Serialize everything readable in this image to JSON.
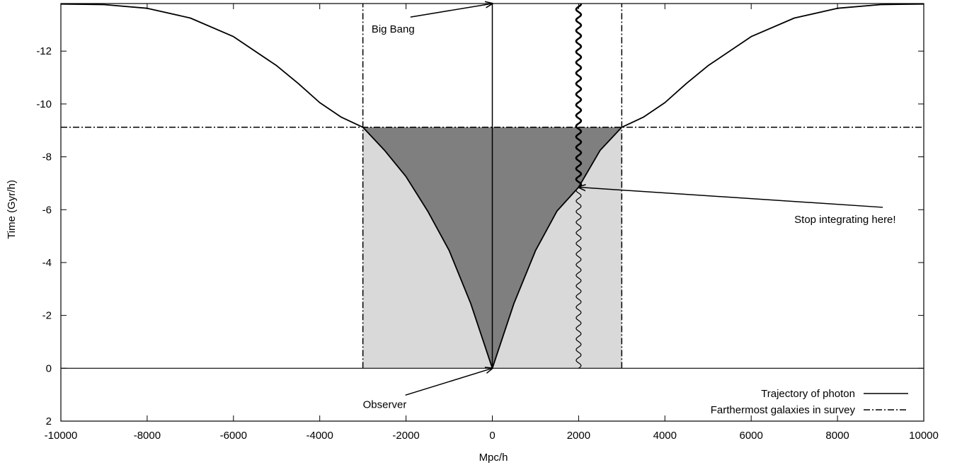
{
  "chart_data": {
    "type": "line",
    "title": "",
    "xlabel": "Mpc/h",
    "ylabel": "Time (Gyr/h)",
    "xlim": [
      -10000,
      10000
    ],
    "ylim": [
      2,
      -13.8
    ],
    "y_axis_inverted": true,
    "grid": false,
    "legend_position": "bottom-right",
    "x_ticks": [
      {
        "value": -10000,
        "label": "-10000"
      },
      {
        "value": -8000,
        "label": "-8000"
      },
      {
        "value": -6000,
        "label": "-6000"
      },
      {
        "value": -4000,
        "label": "-4000"
      },
      {
        "value": -2000,
        "label": "-2000"
      },
      {
        "value": 0,
        "label": "0"
      },
      {
        "value": 2000,
        "label": "2000"
      },
      {
        "value": 4000,
        "label": "4000"
      },
      {
        "value": 6000,
        "label": "6000"
      },
      {
        "value": 8000,
        "label": "8000"
      },
      {
        "value": 10000,
        "label": "10000"
      }
    ],
    "y_ticks": [
      {
        "value": -12,
        "label": "-12"
      },
      {
        "value": -10,
        "label": "-10"
      },
      {
        "value": -8,
        "label": "-8"
      },
      {
        "value": -6,
        "label": "-6"
      },
      {
        "value": -4,
        "label": "-4"
      },
      {
        "value": -2,
        "label": "-2"
      },
      {
        "value": 0,
        "label": "0"
      },
      {
        "value": 2,
        "label": "2"
      }
    ],
    "series": [
      {
        "name": "Trajectory of photon",
        "style": "solid",
        "x": [
          -10000,
          -9000,
          -8000,
          -7000,
          -6000,
          -5000,
          -4500,
          -4000,
          -3500,
          -3000,
          -2500,
          -2000,
          -1500,
          -1000,
          -500,
          0,
          500,
          1000,
          1500,
          2000,
          2500,
          3000,
          3500,
          4000,
          4500,
          5000,
          6000,
          7000,
          8000,
          9000,
          10000
        ],
        "y": [
          -13.78,
          -13.76,
          -13.62,
          -13.25,
          -12.55,
          -11.45,
          -10.78,
          -10.05,
          -9.5,
          -9.12,
          -8.25,
          -7.25,
          -5.95,
          -4.45,
          -2.45,
          0,
          -2.45,
          -4.45,
          -5.95,
          -6.85,
          -8.25,
          -9.12,
          -9.5,
          -10.05,
          -10.78,
          -11.45,
          -12.55,
          -13.25,
          -13.62,
          -13.76,
          -13.78
        ]
      },
      {
        "name": "Farthermost galaxies in survey",
        "style": "dash-dot",
        "segments": [
          {
            "x": [
              -10000,
              10000
            ],
            "y": [
              -9.12,
              -9.12
            ]
          },
          {
            "x": [
              -3000,
              -3000
            ],
            "y": [
              0,
              -13.8
            ]
          },
          {
            "x": [
              3000,
              3000
            ],
            "y": [
              0,
              -13.8
            ]
          }
        ]
      }
    ],
    "shaded_regions": [
      {
        "description": "light grey band",
        "x": [
          -3000,
          3000
        ],
        "y": [
          0,
          -9.12
        ],
        "color": "#d9d9d9"
      },
      {
        "description": "dark grey cone inside photon trajectory",
        "y_top": -9.12,
        "color": "#7f7f7f"
      }
    ],
    "extra_lines": [
      {
        "style": "solid",
        "x": [
          0,
          0
        ],
        "y": [
          0,
          -13.8
        ]
      },
      {
        "style": "wavy",
        "x": 2000,
        "y": [
          0,
          -13.8
        ],
        "thick_above": -6.85
      }
    ],
    "annotations": [
      {
        "text": "Big Bang",
        "text_x": -2800,
        "text_y": -12.7,
        "arrow_to": [
          0,
          -13.8
        ]
      },
      {
        "text": "Observer",
        "text_x": -3000,
        "text_y": 1.5,
        "arrow_to": [
          0,
          0
        ]
      },
      {
        "text": "Stop integrating here!",
        "text_x": 7000,
        "text_y": -5.5,
        "arrow_to": [
          2000,
          -6.85
        ]
      }
    ]
  }
}
